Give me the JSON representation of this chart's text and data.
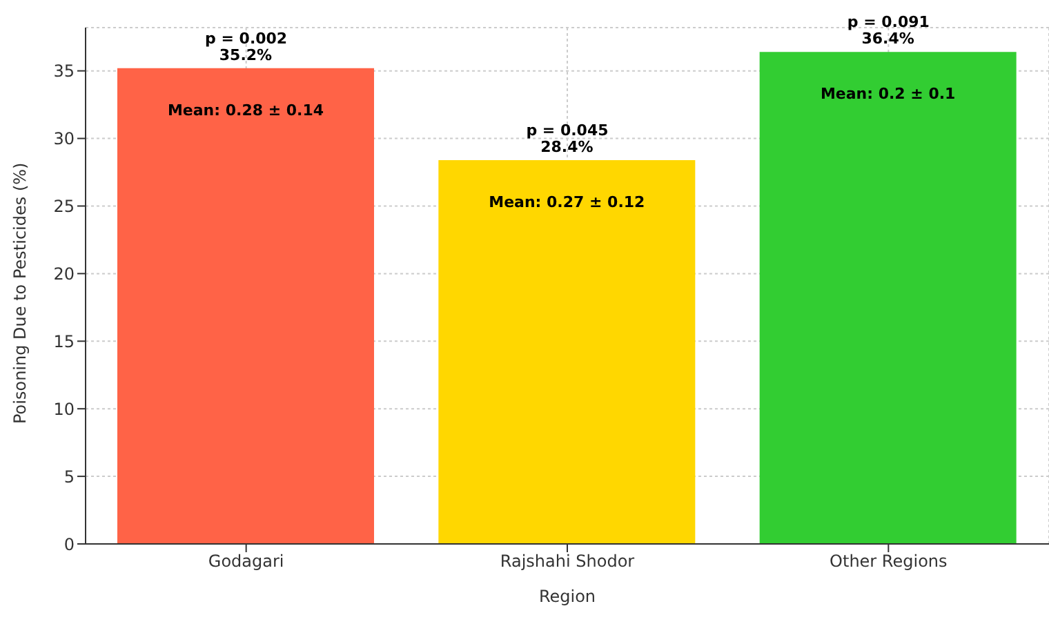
{
  "chart_data": {
    "type": "bar",
    "xlabel": "Region",
    "ylabel": "Poisoning Due to Pesticides (%)",
    "categories": [
      "Godagari",
      "Rajshahi Shodor",
      "Other Regions"
    ],
    "values": [
      35.2,
      28.4,
      36.4
    ],
    "colors": [
      "#ff6347",
      "#ffd700",
      "#32cd32"
    ],
    "value_labels": [
      "35.2%",
      "28.4%",
      "36.4%"
    ],
    "ylim": [
      0,
      38.2
    ],
    "yticks": [
      0,
      5,
      10,
      15,
      20,
      25,
      30,
      35
    ],
    "grid": true,
    "annotations": [
      {
        "text": "p = 0.002",
        "x": "Godagari",
        "y": 35.2
      },
      {
        "text": "p = 0.045",
        "x": "Rajshahi Shodor",
        "y": 28.4
      },
      {
        "text": "p = 0.091",
        "x": "Other Regions",
        "y": 36.4
      },
      "Mean: 0.28 ± 0.14",
      "Mean: 0.27 ± 0.12",
      "Mean: 0.2 ± 0.1"
    ]
  }
}
